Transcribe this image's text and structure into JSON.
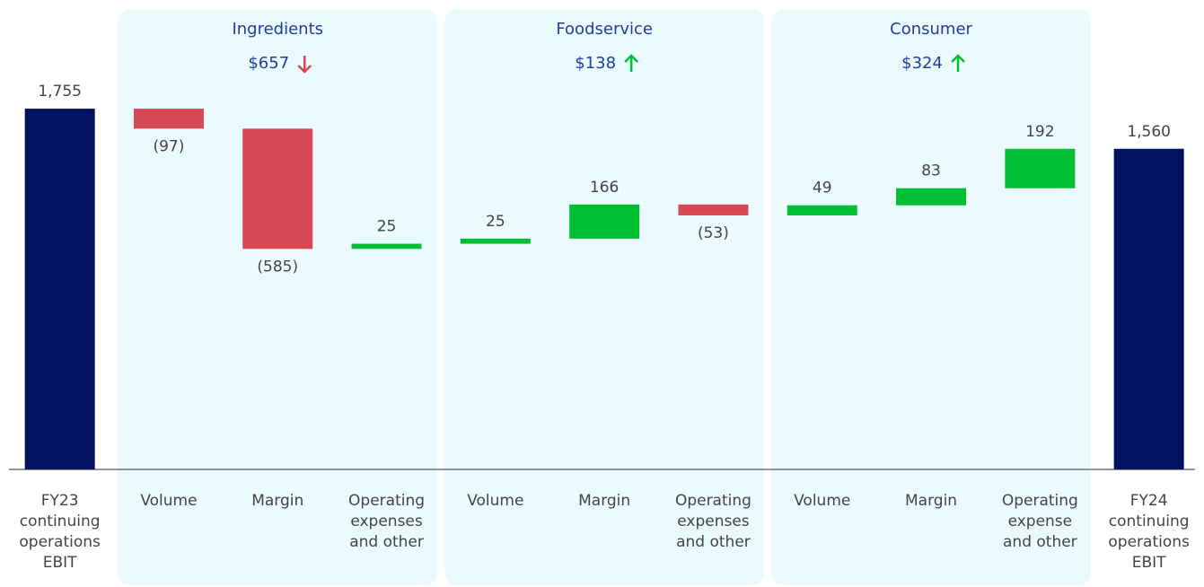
{
  "chart_data": {
    "type": "waterfall",
    "categories": [
      [
        "FY23",
        "continuing",
        "operations",
        "EBIT"
      ],
      [
        "Volume"
      ],
      [
        "Margin"
      ],
      [
        "Operating",
        "expenses",
        "and other"
      ],
      [
        "Volume"
      ],
      [
        "Margin"
      ],
      [
        "Operating",
        "expenses",
        "and other"
      ],
      [
        "Volume"
      ],
      [
        "Margin"
      ],
      [
        "Operating",
        "expense",
        "and other"
      ],
      [
        "FY24",
        "continuing",
        "operations",
        "EBIT"
      ]
    ],
    "values": [
      1755,
      -97,
      -585,
      25,
      25,
      166,
      -53,
      49,
      83,
      192,
      1560
    ],
    "value_labels": [
      "1,755",
      "(97)",
      "(585)",
      "25",
      "25",
      "166",
      "(53)",
      "49",
      "83",
      "192",
      "1,560"
    ],
    "totals": [
      0,
      10
    ],
    "colors": {
      "total": "#001260",
      "increase": "#00bf33",
      "decrease": "#d64853"
    },
    "groups": [
      {
        "name": "Ingredients",
        "total": "$657",
        "trend": "down",
        "start": 1,
        "end": 3
      },
      {
        "name": "Foodservice",
        "total": "$138",
        "trend": "up",
        "start": 4,
        "end": 6
      },
      {
        "name": "Consumer",
        "total": "$324",
        "trend": "up",
        "start": 7,
        "end": 9
      }
    ],
    "ylim": [
      0,
      2000
    ]
  }
}
